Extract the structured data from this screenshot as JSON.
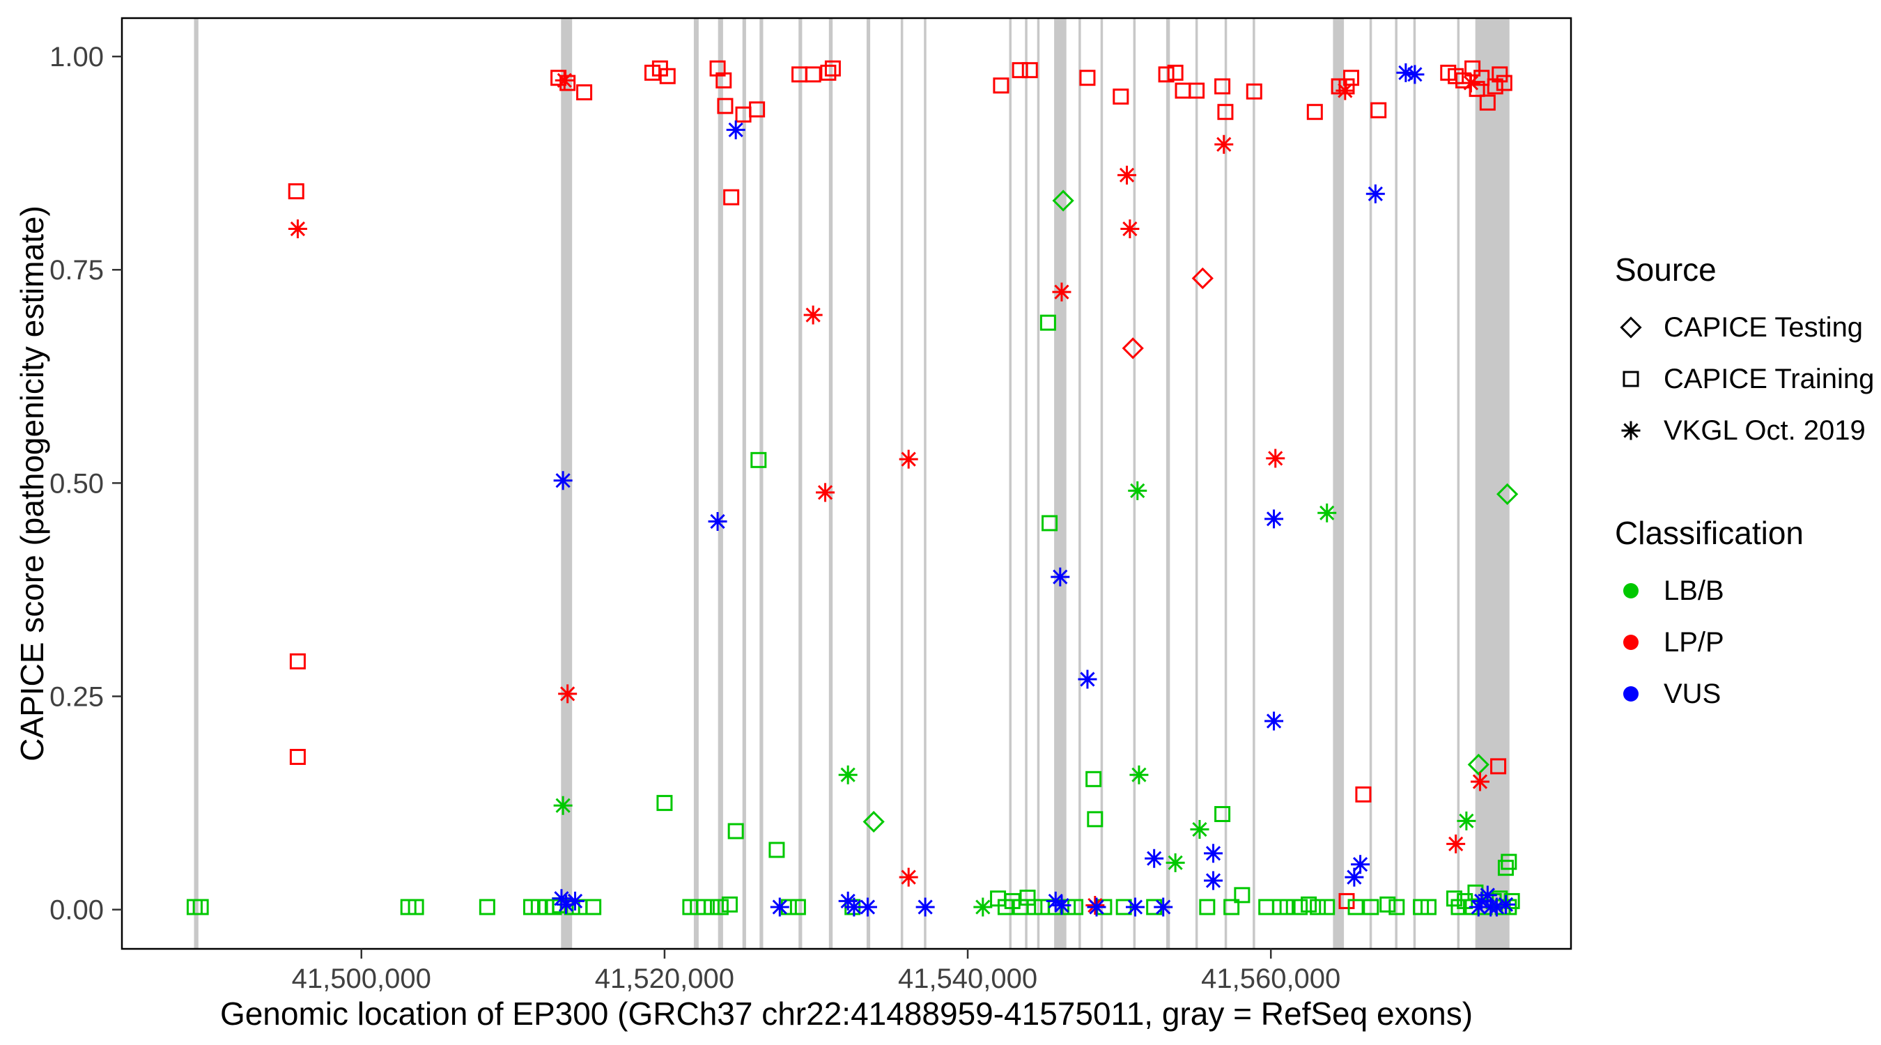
{
  "chart_data": {
    "type": "scatter",
    "title": "",
    "xlabel": "Genomic location of EP300 (GRCh37 chr22:41488959-41575011, gray = RefSeq exons)",
    "ylabel": "CAPICE score (pathogenicity estimate)",
    "xlim": [
      41484200,
      41579800
    ],
    "ylim": [
      -0.046,
      1.045
    ],
    "grid": false,
    "legend_position": "right",
    "x_ticks": [
      {
        "value": 41500000,
        "label": "41,500,000"
      },
      {
        "value": 41520000,
        "label": "41,520,000"
      },
      {
        "value": 41540000,
        "label": "41,540,000"
      },
      {
        "value": 41560000,
        "label": "41,560,000"
      }
    ],
    "y_ticks": [
      {
        "value": 0.0,
        "label": "0.00"
      },
      {
        "value": 0.25,
        "label": "0.25"
      },
      {
        "value": 0.5,
        "label": "0.50"
      },
      {
        "value": 0.75,
        "label": "0.75"
      },
      {
        "value": 1.0,
        "label": "1.00"
      }
    ],
    "colors": {
      "LB/B": "#00C800",
      "LP/P": "#FF0000",
      "VUS": "#0000FF"
    },
    "exon_color": "#C8C8C8",
    "exons": [
      [
        41488959,
        41489250
      ],
      [
        41513170,
        41513900
      ],
      [
        41521930,
        41522250
      ],
      [
        41523530,
        41523860
      ],
      [
        41525140,
        41525380
      ],
      [
        41526270,
        41526510
      ],
      [
        41528840,
        41529080
      ],
      [
        41530840,
        41531090
      ],
      [
        41533330,
        41533570
      ],
      [
        41535580,
        41535740
      ],
      [
        41537110,
        41537270
      ],
      [
        41542730,
        41542890
      ],
      [
        41543780,
        41543940
      ],
      [
        41544580,
        41544740
      ],
      [
        41545700,
        41546510
      ],
      [
        41547310,
        41547470
      ],
      [
        41548760,
        41548920
      ],
      [
        41550920,
        41551080
      ],
      [
        41553090,
        41553340
      ],
      [
        41555020,
        41555180
      ],
      [
        41556950,
        41557110
      ],
      [
        41558800,
        41558960
      ],
      [
        41564100,
        41564820
      ],
      [
        41566510,
        41566670
      ],
      [
        41568190,
        41568350
      ],
      [
        41569400,
        41569560
      ],
      [
        41572290,
        41572450
      ],
      [
        41573490,
        41575740
      ]
    ],
    "series": [
      {
        "name": "CAPICE Testing",
        "shape": "diamond",
        "points": [
          [
            41533800,
            0.103,
            "LB/B"
          ],
          [
            41546300,
            0.831,
            "LB/B"
          ],
          [
            41550900,
            0.658,
            "LP/P"
          ],
          [
            41555500,
            0.74,
            "LP/P"
          ],
          [
            41573700,
            0.17,
            "LB/B"
          ],
          [
            41575600,
            0.487,
            "LB/B"
          ]
        ]
      },
      {
        "name": "CAPICE Training",
        "shape": "square",
        "points": [
          [
            41495700,
            0.842,
            "LP/P"
          ],
          [
            41495800,
            0.291,
            "LP/P"
          ],
          [
            41495800,
            0.179,
            "LP/P"
          ],
          [
            41513000,
            0.975,
            "LP/P"
          ],
          [
            41513600,
            0.969,
            "LP/P"
          ],
          [
            41514700,
            0.958,
            "LP/P"
          ],
          [
            41519200,
            0.981,
            "LP/P"
          ],
          [
            41519700,
            0.986,
            "LP/P"
          ],
          [
            41520200,
            0.977,
            "LP/P"
          ],
          [
            41523500,
            0.986,
            "LP/P"
          ],
          [
            41523900,
            0.972,
            "LP/P"
          ],
          [
            41524000,
            0.942,
            "LP/P"
          ],
          [
            41524400,
            0.835,
            "LP/P"
          ],
          [
            41525200,
            0.932,
            "LP/P"
          ],
          [
            41526100,
            0.938,
            "LP/P"
          ],
          [
            41528900,
            0.979,
            "LP/P"
          ],
          [
            41529800,
            0.979,
            "LP/P"
          ],
          [
            41530800,
            0.981,
            "LP/P"
          ],
          [
            41531100,
            0.986,
            "LP/P"
          ],
          [
            41542200,
            0.966,
            "LP/P"
          ],
          [
            41543450,
            0.984,
            "LP/P"
          ],
          [
            41544100,
            0.984,
            "LP/P"
          ],
          [
            41547900,
            0.975,
            "LP/P"
          ],
          [
            41550100,
            0.953,
            "LP/P"
          ],
          [
            41553100,
            0.979,
            "LP/P"
          ],
          [
            41553700,
            0.981,
            "LP/P"
          ],
          [
            41554200,
            0.96,
            "LP/P"
          ],
          [
            41555100,
            0.96,
            "LP/P"
          ],
          [
            41556800,
            0.965,
            "LP/P"
          ],
          [
            41557000,
            0.935,
            "LP/P"
          ],
          [
            41558900,
            0.959,
            "LP/P"
          ],
          [
            41562900,
            0.935,
            "LP/P"
          ],
          [
            41564500,
            0.965,
            "LP/P"
          ],
          [
            41565000,
            0.965,
            "LP/P"
          ],
          [
            41565000,
            0.01,
            "LP/P"
          ],
          [
            41565300,
            0.975,
            "LP/P"
          ],
          [
            41566100,
            0.135,
            "LP/P"
          ],
          [
            41567100,
            0.937,
            "LP/P"
          ],
          [
            41571700,
            0.981,
            "LP/P"
          ],
          [
            41572200,
            0.977,
            "LP/P"
          ],
          [
            41572700,
            0.972,
            "LP/P"
          ],
          [
            41573300,
            0.986,
            "LP/P"
          ],
          [
            41573600,
            0.962,
            "LP/P"
          ],
          [
            41573900,
            0.975,
            "LP/P"
          ],
          [
            41574300,
            0.946,
            "LP/P"
          ],
          [
            41574800,
            0.965,
            "LP/P"
          ],
          [
            41575100,
            0.979,
            "LP/P"
          ],
          [
            41575400,
            0.969,
            "LP/P"
          ],
          [
            41575000,
            0.168,
            "LP/P"
          ],
          [
            41489000,
            0.003,
            "LB/B"
          ],
          [
            41489400,
            0.003,
            "LB/B"
          ],
          [
            41503100,
            0.003,
            "LB/B"
          ],
          [
            41503600,
            0.003,
            "LB/B"
          ],
          [
            41508300,
            0.003,
            "LB/B"
          ],
          [
            41511200,
            0.003,
            "LB/B"
          ],
          [
            41511700,
            0.003,
            "LB/B"
          ],
          [
            41512200,
            0.003,
            "LB/B"
          ],
          [
            41512700,
            0.003,
            "LB/B"
          ],
          [
            41513100,
            0.005,
            "LB/B"
          ],
          [
            41513900,
            0.003,
            "LB/B"
          ],
          [
            41514400,
            0.003,
            "LB/B"
          ],
          [
            41515300,
            0.003,
            "LB/B"
          ],
          [
            41520000,
            0.125,
            "LB/B"
          ],
          [
            41521700,
            0.003,
            "LB/B"
          ],
          [
            41522200,
            0.003,
            "LB/B"
          ],
          [
            41522600,
            0.003,
            "LB/B"
          ],
          [
            41523100,
            0.003,
            "LB/B"
          ],
          [
            41523700,
            0.003,
            "LB/B"
          ],
          [
            41524300,
            0.006,
            "LB/B"
          ],
          [
            41524700,
            0.092,
            "LB/B"
          ],
          [
            41526200,
            0.527,
            "LB/B"
          ],
          [
            41527400,
            0.07,
            "LB/B"
          ],
          [
            41528200,
            0.003,
            "LB/B"
          ],
          [
            41528800,
            0.003,
            "LB/B"
          ],
          [
            41532400,
            0.003,
            "LB/B"
          ],
          [
            41542000,
            0.013,
            "LB/B"
          ],
          [
            41542500,
            0.003,
            "LB/B"
          ],
          [
            41542950,
            0.01,
            "LB/B"
          ],
          [
            41543500,
            0.003,
            "LB/B"
          ],
          [
            41543950,
            0.014,
            "LB/B"
          ],
          [
            41544400,
            0.003,
            "LB/B"
          ],
          [
            41544900,
            0.003,
            "LB/B"
          ],
          [
            41545300,
            0.688,
            "LB/B"
          ],
          [
            41545400,
            0.453,
            "LB/B"
          ],
          [
            41545800,
            0.003,
            "LB/B"
          ],
          [
            41546600,
            0.003,
            "LB/B"
          ],
          [
            41547100,
            0.003,
            "LB/B"
          ],
          [
            41548300,
            0.153,
            "LB/B"
          ],
          [
            41548400,
            0.106,
            "LB/B"
          ],
          [
            41549000,
            0.003,
            "LB/B"
          ],
          [
            41550300,
            0.003,
            "LB/B"
          ],
          [
            41552300,
            0.003,
            "LB/B"
          ],
          [
            41555800,
            0.003,
            "LB/B"
          ],
          [
            41556800,
            0.112,
            "LB/B"
          ],
          [
            41557400,
            0.003,
            "LB/B"
          ],
          [
            41558100,
            0.017,
            "LB/B"
          ],
          [
            41559700,
            0.003,
            "LB/B"
          ],
          [
            41560600,
            0.003,
            "LB/B"
          ],
          [
            41561100,
            0.003,
            "LB/B"
          ],
          [
            41561900,
            0.003,
            "LB/B"
          ],
          [
            41562500,
            0.006,
            "LB/B"
          ],
          [
            41563100,
            0.003,
            "LB/B"
          ],
          [
            41563700,
            0.003,
            "LB/B"
          ],
          [
            41565600,
            0.003,
            "LB/B"
          ],
          [
            41566600,
            0.003,
            "LB/B"
          ],
          [
            41567700,
            0.006,
            "LB/B"
          ],
          [
            41568300,
            0.003,
            "LB/B"
          ],
          [
            41569900,
            0.003,
            "LB/B"
          ],
          [
            41570400,
            0.003,
            "LB/B"
          ],
          [
            41572100,
            0.013,
            "LB/B"
          ],
          [
            41572400,
            0.003,
            "LB/B"
          ],
          [
            41572800,
            0.01,
            "LB/B"
          ],
          [
            41573200,
            0.003,
            "LB/B"
          ],
          [
            41573500,
            0.02,
            "LB/B"
          ],
          [
            41574100,
            0.003,
            "LB/B"
          ],
          [
            41574700,
            0.01,
            "LB/B"
          ],
          [
            41575100,
            0.013,
            "LB/B"
          ],
          [
            41575300,
            0.003,
            "LB/B"
          ],
          [
            41575700,
            0.003,
            "LB/B"
          ],
          [
            41575900,
            0.01,
            "LB/B"
          ],
          [
            41575700,
            0.056,
            "LB/B"
          ],
          [
            41575500,
            0.049,
            "LB/B"
          ]
        ]
      },
      {
        "name": "VKGL Oct. 2019",
        "shape": "asterisk",
        "points": [
          [
            41495800,
            0.798,
            "LP/P"
          ],
          [
            41513400,
            0.972,
            "LP/P"
          ],
          [
            41513600,
            0.253,
            "LP/P"
          ],
          [
            41529800,
            0.697,
            "LP/P"
          ],
          [
            41530600,
            0.489,
            "LP/P"
          ],
          [
            41536100,
            0.528,
            "LP/P"
          ],
          [
            41536100,
            0.038,
            "LP/P"
          ],
          [
            41546200,
            0.724,
            "LP/P"
          ],
          [
            41548400,
            0.005,
            "LP/P"
          ],
          [
            41550500,
            0.861,
            "LP/P"
          ],
          [
            41550700,
            0.798,
            "LP/P"
          ],
          [
            41556900,
            0.897,
            "LP/P"
          ],
          [
            41560300,
            0.529,
            "LP/P"
          ],
          [
            41564900,
            0.96,
            "LP/P"
          ],
          [
            41572200,
            0.077,
            "LP/P"
          ],
          [
            41573800,
            0.15,
            "LP/P"
          ],
          [
            41573200,
            0.969,
            "LP/P"
          ],
          [
            41513300,
            0.122,
            "LB/B"
          ],
          [
            41532100,
            0.158,
            "LB/B"
          ],
          [
            41541000,
            0.003,
            "LB/B"
          ],
          [
            41551200,
            0.491,
            "LB/B"
          ],
          [
            41551300,
            0.158,
            "LB/B"
          ],
          [
            41553700,
            0.055,
            "LB/B"
          ],
          [
            41555300,
            0.094,
            "LB/B"
          ],
          [
            41563700,
            0.465,
            "LB/B"
          ],
          [
            41572900,
            0.104,
            "LB/B"
          ],
          [
            41513300,
            0.503,
            "VUS"
          ],
          [
            41513200,
            0.013,
            "VUS"
          ],
          [
            41513500,
            0.006,
            "VUS"
          ],
          [
            41514100,
            0.01,
            "VUS"
          ],
          [
            41523500,
            0.455,
            "VUS"
          ],
          [
            41524700,
            0.914,
            "VUS"
          ],
          [
            41527600,
            0.003,
            "VUS"
          ],
          [
            41532100,
            0.01,
            "VUS"
          ],
          [
            41532500,
            0.003,
            "VUS"
          ],
          [
            41533400,
            0.003,
            "VUS"
          ],
          [
            41537200,
            0.003,
            "VUS"
          ],
          [
            41545800,
            0.01,
            "VUS"
          ],
          [
            41546100,
            0.39,
            "VUS"
          ],
          [
            41546200,
            0.005,
            "VUS"
          ],
          [
            41547900,
            0.27,
            "VUS"
          ],
          [
            41548500,
            0.003,
            "VUS"
          ],
          [
            41551050,
            0.003,
            "VUS"
          ],
          [
            41552300,
            0.06,
            "VUS"
          ],
          [
            41552900,
            0.003,
            "VUS"
          ],
          [
            41556200,
            0.066,
            "VUS"
          ],
          [
            41556200,
            0.034,
            "VUS"
          ],
          [
            41560200,
            0.458,
            "VUS"
          ],
          [
            41560200,
            0.221,
            "VUS"
          ],
          [
            41565500,
            0.038,
            "VUS"
          ],
          [
            41565900,
            0.053,
            "VUS"
          ],
          [
            41566900,
            0.839,
            "VUS"
          ],
          [
            41568900,
            0.981,
            "VUS"
          ],
          [
            41569500,
            0.979,
            "VUS"
          ],
          [
            41573700,
            0.003,
            "VUS"
          ],
          [
            41573900,
            0.01,
            "VUS"
          ],
          [
            41574300,
            0.017,
            "VUS"
          ],
          [
            41574500,
            0.003,
            "VUS"
          ],
          [
            41574900,
            0.003,
            "VUS"
          ],
          [
            41575500,
            0.006,
            "VUS"
          ]
        ]
      }
    ],
    "legend": {
      "source_title": "Source",
      "source_items": [
        {
          "label": "CAPICE Testing",
          "shape": "diamond"
        },
        {
          "label": "CAPICE Training",
          "shape": "square"
        },
        {
          "label": "VKGL Oct. 2019",
          "shape": "asterisk"
        }
      ],
      "classification_title": "Classification",
      "classification_items": [
        {
          "label": "LB/B",
          "color": "#00C800"
        },
        {
          "label": "LP/P",
          "color": "#FF0000"
        },
        {
          "label": "VUS",
          "color": "#0000FF"
        }
      ]
    }
  }
}
